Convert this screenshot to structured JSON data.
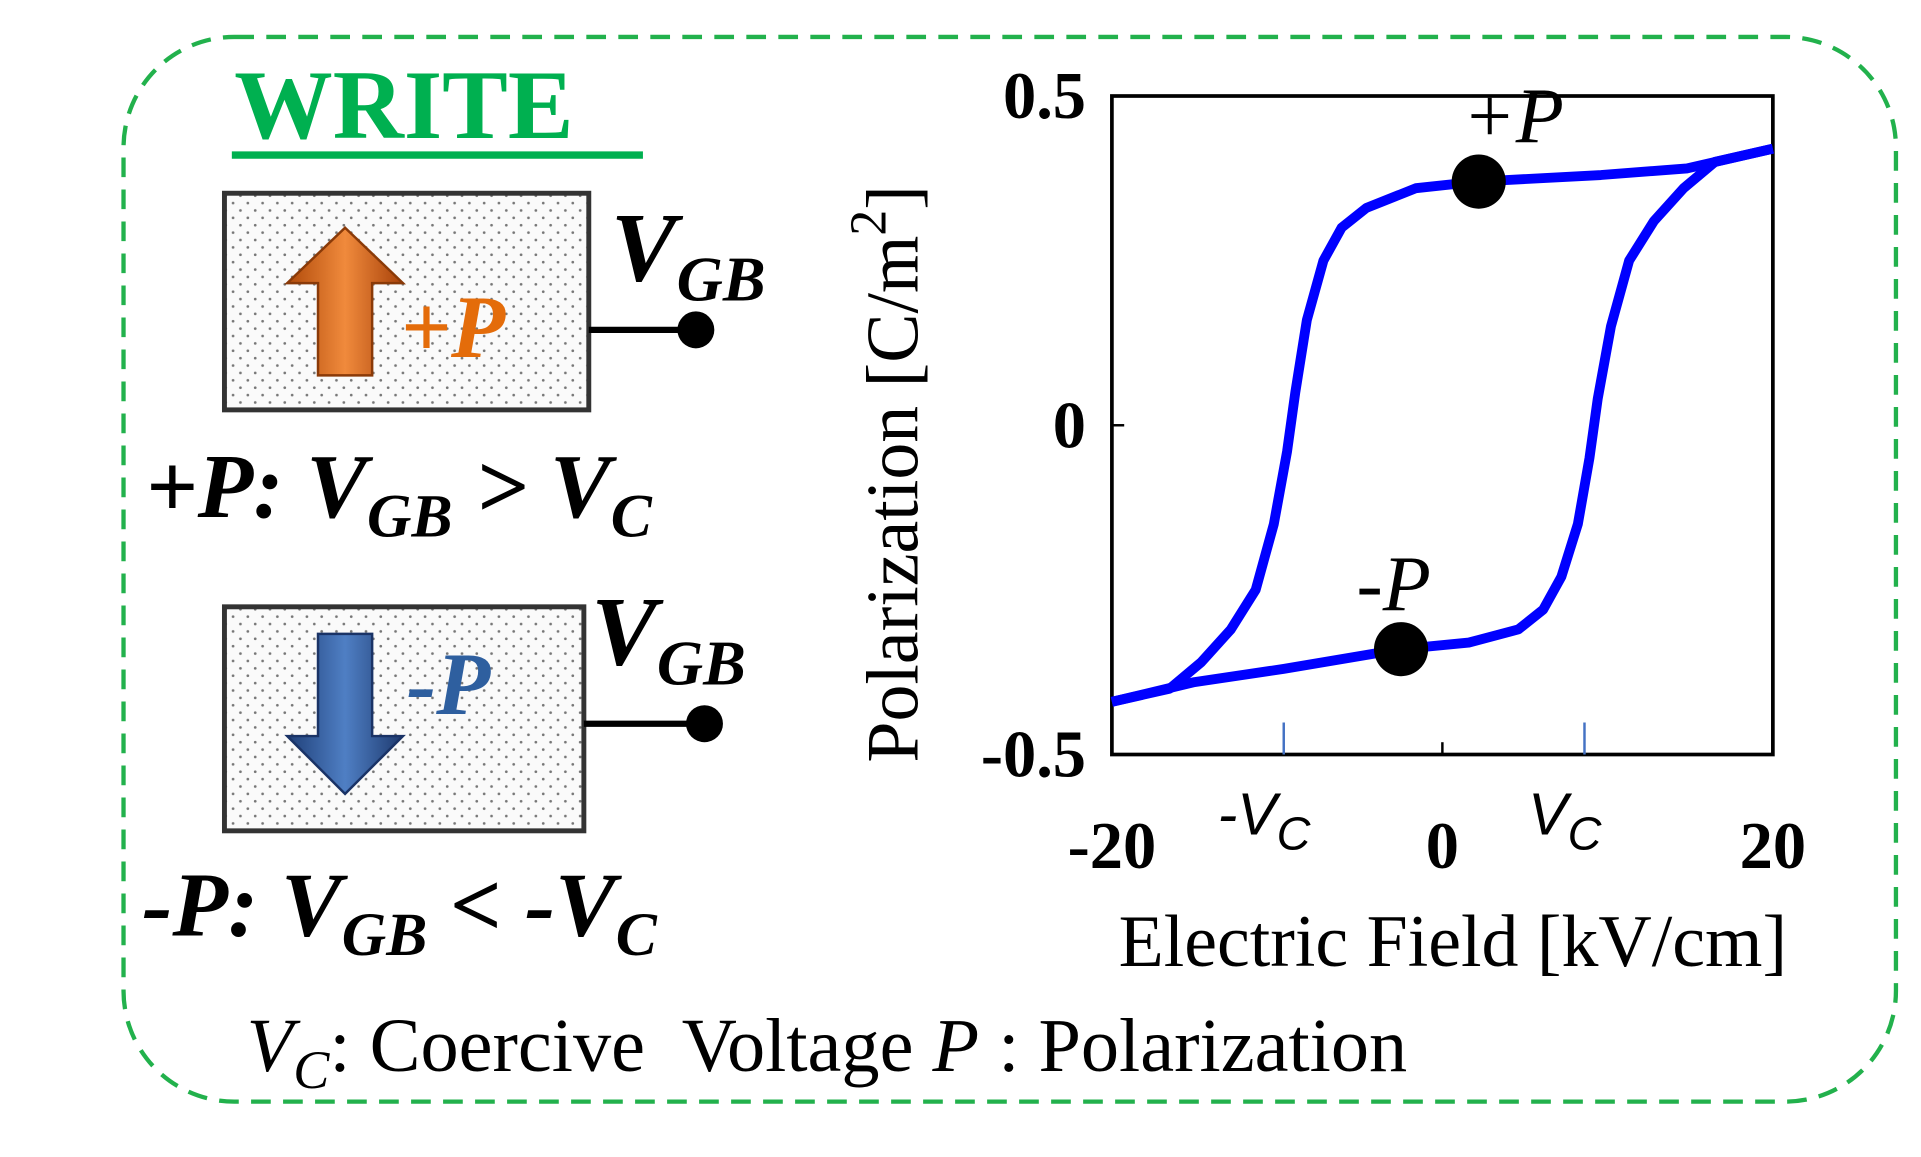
{
  "write": {
    "title": "WRITE",
    "plus_state": {
      "label": "+P",
      "terminal": {
        "symbol": "V",
        "sub": "GB"
      },
      "condition": [
        "+P: V",
        "GB",
        " > V",
        "C"
      ]
    },
    "minus_state": {
      "label": "-P",
      "terminal": {
        "symbol": "V",
        "sub": "GB"
      },
      "condition": [
        "-P: V",
        "GB",
        " < -V",
        "C"
      ]
    }
  },
  "footnote": [
    "V",
    "C",
    ": Coercive  Voltage ",
    "P",
    " : Polarization"
  ],
  "chart_data": {
    "type": "line",
    "xlabel": "Electric Field [kV/cm]",
    "ylabel": [
      "Polarization [C/m",
      "2",
      "]"
    ],
    "xlim": [
      -20,
      20
    ],
    "xticks": [
      -20,
      0,
      20
    ],
    "ylim": [
      -0.5,
      0.5
    ],
    "yticks": [
      -0.5,
      0,
      0.5
    ],
    "coercive_ticks": [
      {
        "value": -9.6,
        "label": "-V",
        "sub": "C"
      },
      {
        "value": 8.6,
        "label": "V",
        "sub": "C"
      }
    ],
    "coercive_color": "#4472c4",
    "series": [
      {
        "color": "#0000ff",
        "x": [
          20,
          14.8,
          9.6,
          2.1,
          -1.6,
          -4.6,
          -6.1,
          -7.2,
          -8.2,
          -8.9,
          -9.4,
          -10.2,
          -11.3,
          -12.8,
          -14.6,
          -16.5,
          -20
        ],
        "values": [
          0.42,
          0.39,
          0.38,
          0.37,
          0.36,
          0.33,
          0.3,
          0.25,
          0.16,
          0.05,
          -0.04,
          -0.15,
          -0.25,
          -0.31,
          -0.36,
          -0.4,
          -0.42
        ]
      },
      {
        "color": "#0000ff",
        "x": [
          -20,
          -15,
          -9.6,
          -2.5,
          1.6,
          4.6,
          6.1,
          7.2,
          8.2,
          8.9,
          9.4,
          10.2,
          11.3,
          12.8,
          14.6,
          16.5,
          20
        ],
        "values": [
          -0.42,
          -0.39,
          -0.37,
          -0.34,
          -0.33,
          -0.31,
          -0.28,
          -0.23,
          -0.15,
          -0.05,
          0.04,
          0.15,
          0.25,
          0.31,
          0.36,
          0.4,
          0.42
        ]
      }
    ],
    "points": [
      {
        "label": "+P",
        "x": 2.2,
        "y": 0.37
      },
      {
        "label": "-P",
        "x": -2.5,
        "y": -0.34
      }
    ],
    "point_color": "#000000"
  }
}
